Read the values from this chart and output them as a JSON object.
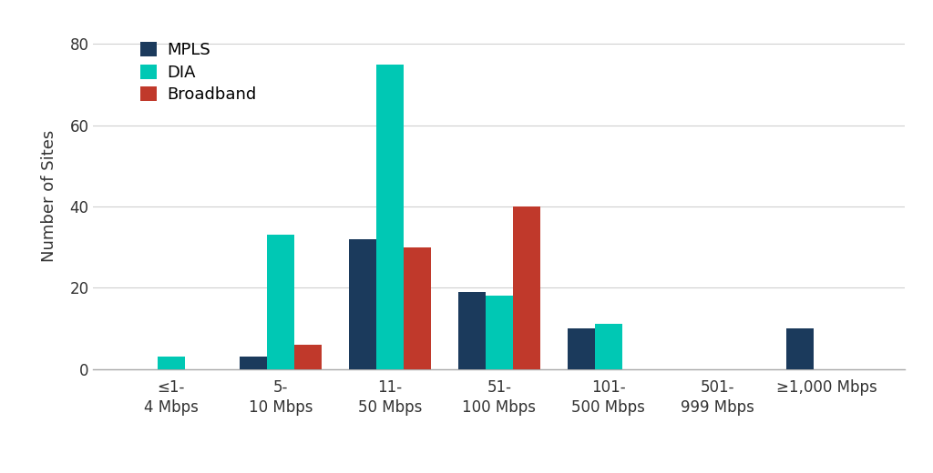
{
  "categories": [
    "≤1-\n4 Mbps",
    "5-\n10 Mbps",
    "11-\n50 Mbps",
    "51-\n100 Mbps",
    "101-\n500 Mbps",
    "501-\n999 Mbps",
    "≥1,000 Mbps"
  ],
  "mpls": [
    0,
    3,
    32,
    19,
    10,
    0,
    10
  ],
  "dia": [
    3,
    33,
    75,
    18,
    11,
    0,
    0
  ],
  "broadband": [
    0,
    6,
    30,
    40,
    0,
    0,
    0
  ],
  "mpls_color": "#1b3a5c",
  "dia_color": "#00c8b4",
  "broadband_color": "#c0392b",
  "ylabel": "Number of Sites",
  "ylim": [
    0,
    85
  ],
  "yticks": [
    0,
    20,
    40,
    60,
    80
  ],
  "bar_width": 0.25,
  "background_color": "#ffffff",
  "grid_color": "#d0d0d0",
  "legend_labels": [
    "MPLS",
    "DIA",
    "Broadband"
  ],
  "tick_fontsize": 12,
  "ylabel_fontsize": 13,
  "legend_fontsize": 13
}
